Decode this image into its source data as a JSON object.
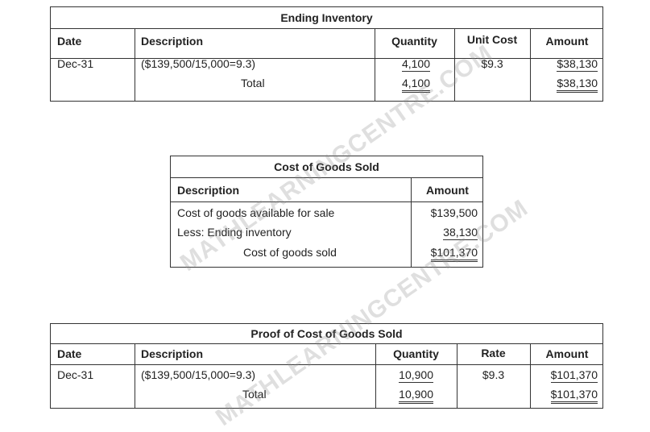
{
  "ending_inventory": {
    "title": "Ending Inventory",
    "headers": {
      "date": "Date",
      "description": "Description",
      "quantity": "Quantity",
      "unit_cost": "Unit Cost",
      "amount": "Amount"
    },
    "row": {
      "date": "Dec-31",
      "description": "($139,500/15,000=9.3)",
      "quantity": "4,100",
      "unit_cost": "$9.3",
      "amount": "$38,130"
    },
    "total": {
      "label": "Total",
      "quantity": "4,100",
      "amount": "$38,130"
    }
  },
  "cogs": {
    "title": "Cost of Goods Sold",
    "headers": {
      "description": "Description",
      "amount": "Amount"
    },
    "rows": [
      {
        "description": "Cost of goods available for sale",
        "amount": "$139,500"
      },
      {
        "description": "Less: Ending inventory",
        "amount": "38,130"
      }
    ],
    "total": {
      "label": "Cost of goods sold",
      "amount": "$101,370"
    }
  },
  "proof": {
    "title": "Proof of Cost of Goods Sold",
    "headers": {
      "date": "Date",
      "description": "Description",
      "quantity": "Quantity",
      "rate": "Rate",
      "amount": "Amount"
    },
    "row": {
      "date": "Dec-31",
      "description": "($139,500/15,000=9.3)",
      "quantity": "10,900",
      "rate": "$9.3",
      "amount": "$101,370"
    },
    "total": {
      "label": "Total",
      "quantity": "10,900",
      "amount": "$101,370"
    }
  },
  "watermark": "MATHLEARNINGCENTRE.COM"
}
